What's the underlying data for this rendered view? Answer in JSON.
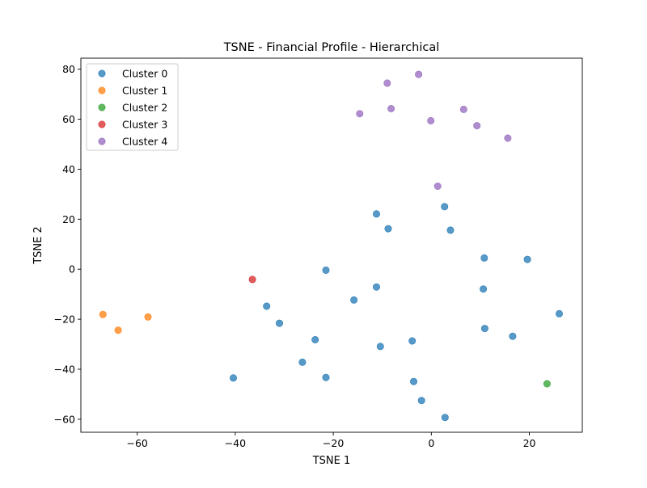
{
  "chart_data": {
    "type": "scatter",
    "title": "TSNE - Financial Profile - Hierarchical",
    "xlabel": "TSNE 1",
    "ylabel": "TSNE 2",
    "xlim": [
      -71.5,
      30.8
    ],
    "ylim": [
      -65.2,
      84.4
    ],
    "x_ticks": [
      -60,
      -40,
      -20,
      0,
      20
    ],
    "y_ticks": [
      -60,
      -40,
      -20,
      0,
      20,
      40,
      60,
      80
    ],
    "x_tick_labels": [
      "−60",
      "−40",
      "−20",
      "0",
      "20"
    ],
    "y_tick_labels": [
      "−60",
      "−40",
      "−20",
      "0",
      "20",
      "40",
      "60",
      "80"
    ],
    "grid": false,
    "legend_position": "top-left",
    "series": [
      {
        "name": "Cluster 0",
        "color": "#1f77b4",
        "points": [
          [
            -40.4,
            -43.5
          ],
          [
            -33.6,
            -14.8
          ],
          [
            -31.0,
            -21.6
          ],
          [
            -26.3,
            -37.2
          ],
          [
            -23.7,
            -28.2
          ],
          [
            -21.5,
            -43.3
          ],
          [
            -21.5,
            -0.4
          ],
          [
            -15.8,
            -12.3
          ],
          [
            -11.2,
            -7.1
          ],
          [
            -11.2,
            22.1
          ],
          [
            -10.4,
            -30.9
          ],
          [
            -8.8,
            16.2
          ],
          [
            -3.9,
            -28.7
          ],
          [
            -3.6,
            -44.9
          ],
          [
            -2.0,
            -52.5
          ],
          [
            2.7,
            25.0
          ],
          [
            2.8,
            -59.3
          ],
          [
            3.9,
            15.6
          ],
          [
            10.6,
            -7.9
          ],
          [
            10.8,
            4.5
          ],
          [
            10.9,
            -23.7
          ],
          [
            16.6,
            -26.8
          ],
          [
            19.6,
            3.9
          ],
          [
            26.1,
            -17.8
          ]
        ]
      },
      {
        "name": "Cluster 1",
        "color": "#ff7f0e",
        "points": [
          [
            -67.0,
            -18.1
          ],
          [
            -63.9,
            -24.4
          ],
          [
            -57.8,
            -19.1
          ]
        ]
      },
      {
        "name": "Cluster 2",
        "color": "#2ca02c",
        "points": [
          [
            23.6,
            -45.8
          ]
        ]
      },
      {
        "name": "Cluster 3",
        "color": "#d62728",
        "points": [
          [
            -36.5,
            -4.1
          ]
        ]
      },
      {
        "name": "Cluster 4",
        "color": "#9467bd",
        "points": [
          [
            -14.6,
            62.2
          ],
          [
            -9.0,
            74.4
          ],
          [
            -8.2,
            64.2
          ],
          [
            -2.6,
            77.9
          ],
          [
            -0.1,
            59.4
          ],
          [
            1.3,
            33.2
          ],
          [
            6.6,
            63.9
          ],
          [
            9.3,
            57.4
          ],
          [
            15.6,
            52.4
          ]
        ]
      }
    ]
  }
}
